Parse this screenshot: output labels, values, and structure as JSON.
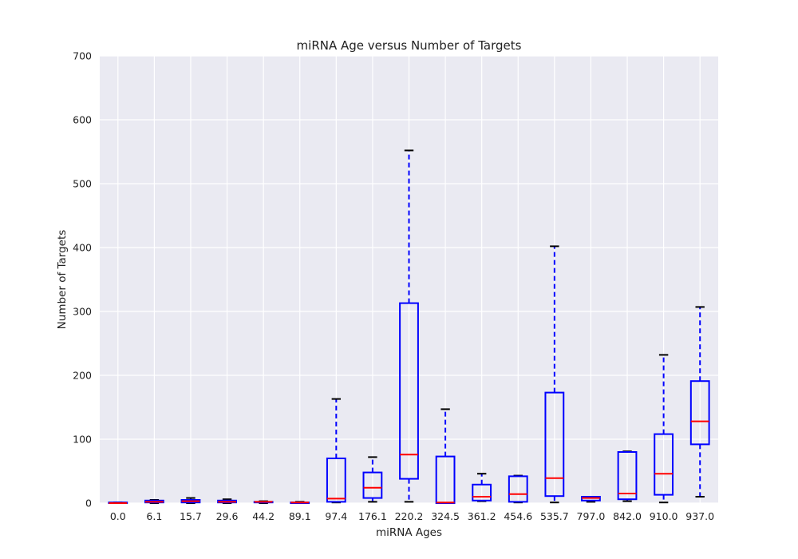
{
  "chart_data": {
    "type": "box",
    "title": "miRNA Age versus Number of Targets",
    "xlabel": "miRNA Ages",
    "ylabel": "Number of Targets",
    "ylim": [
      0,
      700
    ],
    "yticks": [
      0,
      100,
      200,
      300,
      400,
      500,
      600,
      700
    ],
    "grid": true,
    "categories": [
      "0.0",
      "6.1",
      "15.7",
      "29.6",
      "44.2",
      "89.1",
      "97.4",
      "176.1",
      "220.2",
      "324.5",
      "361.2",
      "454.6",
      "535.7",
      "797.0",
      "842.0",
      "910.0",
      "937.0"
    ],
    "boxes": [
      {
        "whislo": 0,
        "q1": 0,
        "med": 0,
        "q3": 1,
        "whishi": 1
      },
      {
        "whislo": 0,
        "q1": 1,
        "med": 2,
        "q3": 4,
        "whishi": 5
      },
      {
        "whislo": 0,
        "q1": 1,
        "med": 3,
        "q3": 5,
        "whishi": 8
      },
      {
        "whislo": 0,
        "q1": 1,
        "med": 2,
        "q3": 4,
        "whishi": 6
      },
      {
        "whislo": 0,
        "q1": 1,
        "med": 2,
        "q3": 2,
        "whishi": 3
      },
      {
        "whislo": 0,
        "q1": 0,
        "med": 1,
        "q3": 1,
        "whishi": 2
      },
      {
        "whislo": 1,
        "q1": 2,
        "med": 7,
        "q3": 70,
        "whishi": 163
      },
      {
        "whislo": 2,
        "q1": 8,
        "med": 24,
        "q3": 48,
        "whishi": 72
      },
      {
        "whislo": 2,
        "q1": 38,
        "med": 76,
        "q3": 313,
        "whishi": 552
      },
      {
        "whislo": 0,
        "q1": 0,
        "med": 1,
        "q3": 73,
        "whishi": 147
      },
      {
        "whislo": 3,
        "q1": 4,
        "med": 10,
        "q3": 29,
        "whishi": 46
      },
      {
        "whislo": 1,
        "q1": 2,
        "med": 14,
        "q3": 42,
        "whishi": 43
      },
      {
        "whislo": 1,
        "q1": 11,
        "med": 39,
        "q3": 173,
        "whishi": 402
      },
      {
        "whislo": 2,
        "q1": 4,
        "med": 8,
        "q3": 10,
        "whishi": 10
      },
      {
        "whislo": 3,
        "q1": 6,
        "med": 15,
        "q3": 80,
        "whishi": 81
      },
      {
        "whislo": 1,
        "q1": 13,
        "med": 46,
        "q3": 108,
        "whishi": 232
      },
      {
        "whislo": 10,
        "q1": 92,
        "med": 128,
        "q3": 191,
        "whishi": 307
      }
    ],
    "colors": {
      "background": "#eaeaf2",
      "grid": "#ffffff",
      "box": "#0000ff",
      "median": "#ff0000",
      "whisker": "#0000ff",
      "cap": "#000000",
      "text": "#222222"
    }
  }
}
